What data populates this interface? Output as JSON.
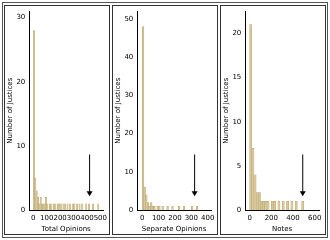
{
  "chart_data": [
    {
      "type": "histogram",
      "x_label": "Total Opinions",
      "y_label": "Number of Justices",
      "bins": [
        0,
        10,
        20,
        30,
        40,
        50,
        60,
        70,
        80,
        90,
        100,
        110,
        120,
        130,
        140,
        150,
        160,
        170,
        180,
        190,
        200,
        210,
        220,
        230,
        240,
        250,
        260,
        270,
        280,
        290,
        300,
        310,
        320,
        330,
        340,
        350,
        360,
        370,
        380,
        390,
        400,
        410,
        420,
        430,
        440,
        450,
        460,
        470,
        480,
        490,
        500
      ],
      "values": [
        28,
        5,
        3,
        2,
        1,
        2,
        1,
        1,
        1,
        2,
        1,
        0,
        1,
        1,
        0,
        1,
        1,
        0,
        1,
        1,
        1,
        0,
        1,
        1,
        0,
        1,
        0,
        1,
        0,
        1,
        1,
        0,
        1,
        0,
        1,
        0,
        1,
        0,
        0,
        1,
        0,
        1,
        0,
        0,
        1,
        0,
        0,
        0,
        1,
        0
      ],
      "color": "#d8c99c",
      "xlim": [
        -30,
        520
      ],
      "xticks": [
        0,
        100,
        200,
        300,
        400,
        500
      ],
      "ylim": [
        0,
        31
      ],
      "yticks": [
        0,
        10,
        20,
        30
      ],
      "grid": false,
      "arrow_x": 420
    },
    {
      "type": "histogram",
      "x_label": "Separate Opinions",
      "y_label": "Number of Justices",
      "bins": [
        0,
        10,
        20,
        30,
        40,
        50,
        60,
        70,
        80,
        90,
        100,
        110,
        120,
        130,
        140,
        150,
        160,
        170,
        180,
        190,
        200,
        210,
        220,
        230,
        240,
        250,
        260,
        270,
        280,
        290,
        300,
        310,
        320,
        330,
        340,
        350
      ],
      "values": [
        48,
        6,
        4,
        2,
        1,
        2,
        1,
        1,
        0,
        1,
        1,
        0,
        1,
        0,
        0,
        1,
        0,
        0,
        1,
        0,
        0,
        0,
        1,
        0,
        0,
        1,
        0,
        0,
        0,
        0,
        1,
        0,
        0,
        1,
        0
      ],
      "color": "#d8c99c",
      "xlim": [
        -30,
        420
      ],
      "xticks": [
        0,
        100,
        200,
        300,
        400
      ],
      "ylim": [
        0,
        52
      ],
      "yticks": [
        0,
        10,
        20,
        30,
        40,
        50
      ],
      "grid": false,
      "arrow_x": 320
    },
    {
      "type": "histogram",
      "x_label": "Notes",
      "y_label": "Number of Justices",
      "bins": [
        0,
        20,
        40,
        60,
        80,
        100,
        120,
        140,
        160,
        180,
        200,
        220,
        240,
        260,
        280,
        300,
        320,
        340,
        360,
        380,
        400,
        420,
        440,
        460,
        480,
        500,
        520
      ],
      "values": [
        21,
        7,
        4,
        2,
        2,
        1,
        1,
        1,
        1,
        0,
        1,
        1,
        0,
        1,
        0,
        1,
        0,
        1,
        0,
        1,
        0,
        1,
        0,
        0,
        1,
        0
      ],
      "color": "#d8c99c",
      "xlim": [
        -40,
        640
      ],
      "xticks": [
        0,
        200,
        400,
        600
      ],
      "ylim": [
        0,
        22.5
      ],
      "yticks": [
        0,
        5,
        10,
        15,
        20
      ],
      "grid": false,
      "arrow_x": 490
    }
  ]
}
